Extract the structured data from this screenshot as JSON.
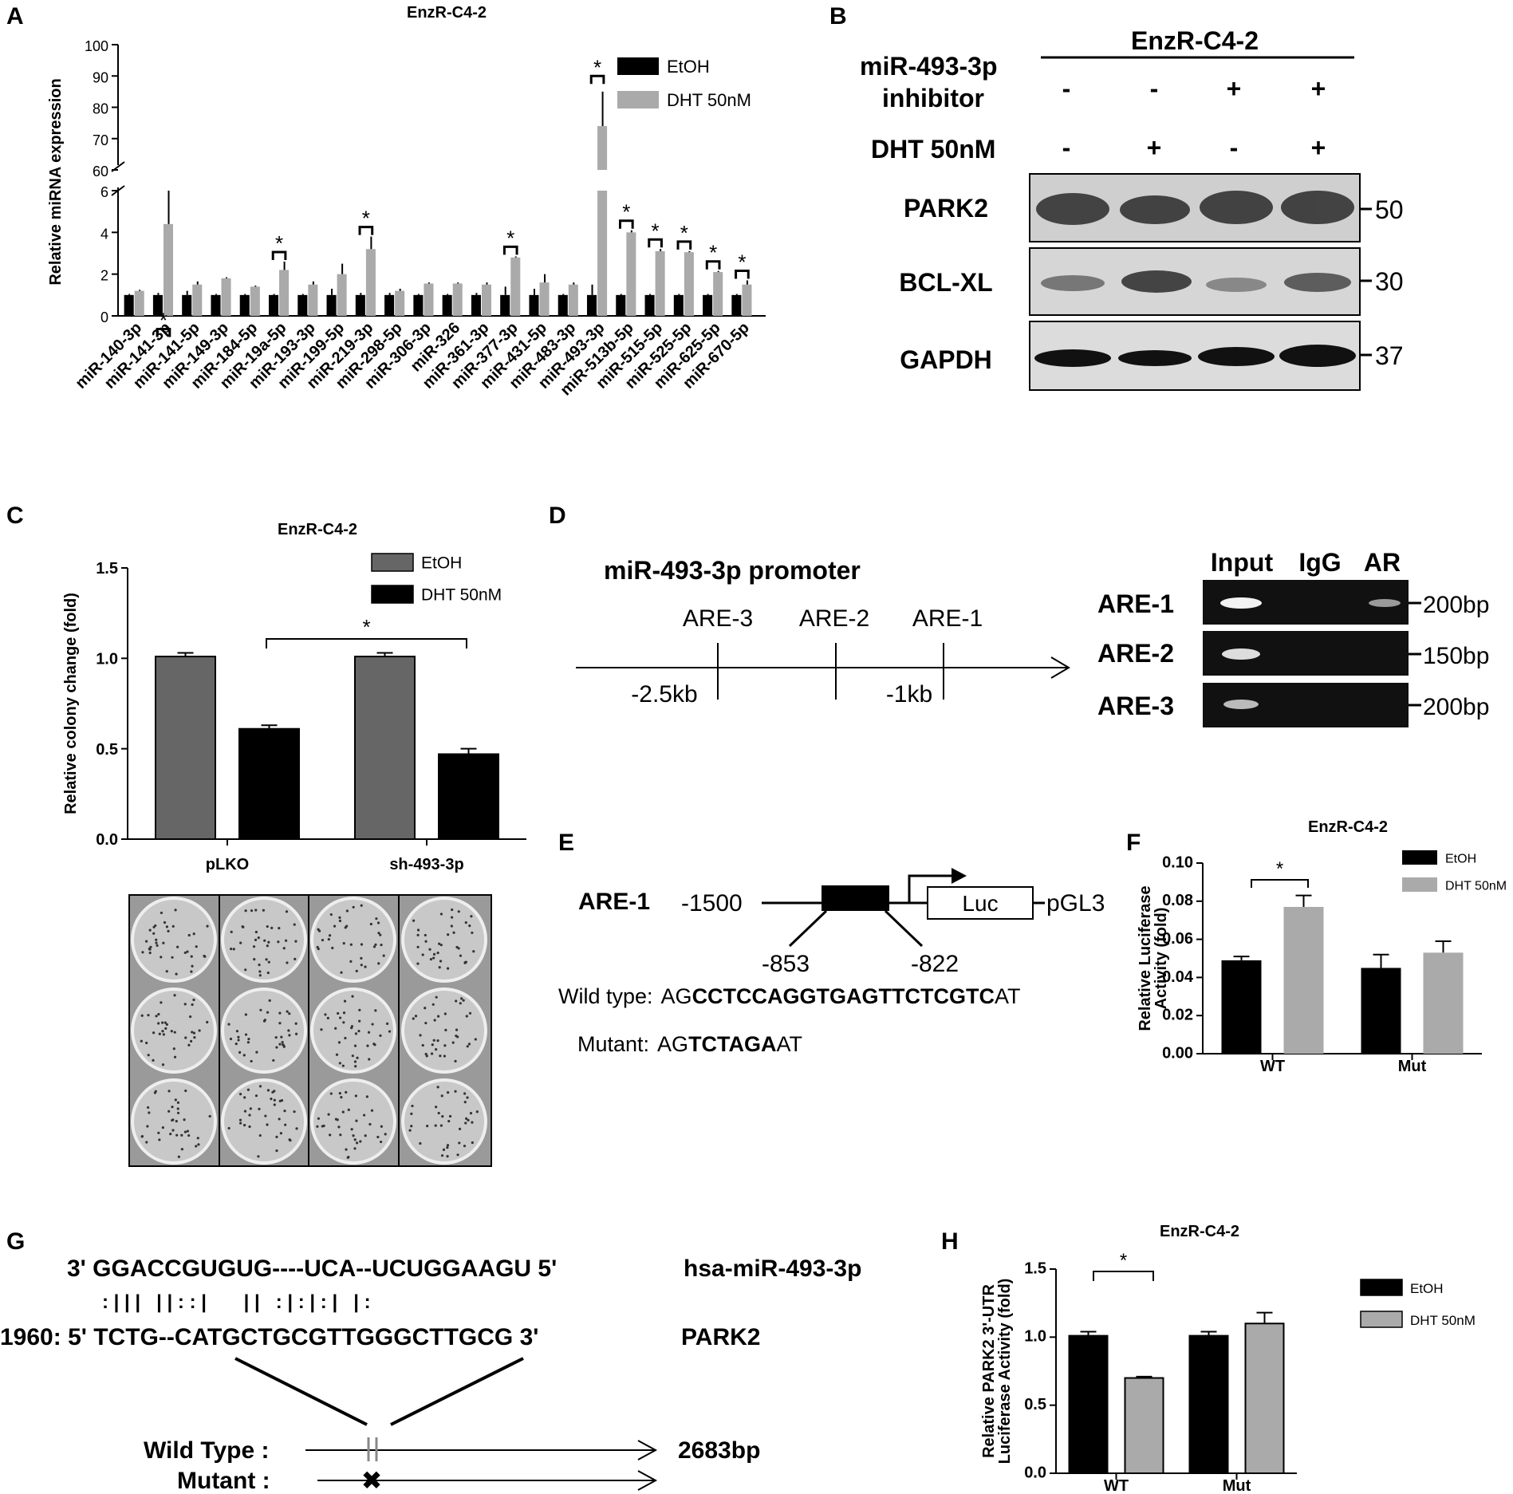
{
  "panels": {
    "A": "A",
    "B": "B",
    "C": "C",
    "D": "D",
    "E": "E",
    "F": "F",
    "G": "G",
    "H": "H"
  },
  "chart_data": [
    {
      "panel": "A",
      "type": "bar",
      "title": "EnzR-C4-2",
      "ylabel": "Relative miRNA expression",
      "xlabel": "",
      "y_axis_break": true,
      "lower_ylim": [
        0,
        6
      ],
      "upper_ylim": [
        60,
        100
      ],
      "lower_ticks": [
        "0",
        "2",
        "4",
        "6"
      ],
      "upper_ticks": [
        "60",
        "70",
        "80",
        "90",
        "100"
      ],
      "legend": [
        "EtOH",
        "DHT 50nM"
      ],
      "legend_position": "top-right",
      "categories": [
        "miR-140-3p",
        "miR-141-3p",
        "miR-141-5p",
        "miR-149-3p",
        "miR-184-5p",
        "miR-19a-5p",
        "miR-193-3p",
        "miR-199-5p",
        "miR-219-3p",
        "miR-298-5p",
        "miR-306-3p",
        "miR-326",
        "miR-361-3p",
        "miR-377-3p",
        "miR-431-5p",
        "miR-483-3p",
        "miR-493-3p",
        "miR-513b-5p",
        "miR-515-5p",
        "miR-525-5p",
        "miR-625-5p",
        "miR-670-5p"
      ],
      "series": [
        {
          "name": "EtOH",
          "color": "#000000",
          "values": [
            1,
            1,
            1,
            1,
            1,
            1,
            1,
            1,
            1,
            1,
            1,
            1,
            1,
            1,
            1,
            1,
            1,
            1,
            1,
            1,
            1,
            1
          ],
          "errors": [
            0.05,
            0.1,
            0.2,
            0.05,
            0.05,
            0.05,
            0.05,
            0.3,
            0.1,
            0.1,
            0.05,
            0.05,
            0.1,
            0.4,
            0.3,
            0.05,
            0.5,
            0.05,
            0.05,
            0.05,
            0.05,
            0.05
          ]
        },
        {
          "name": "DHT 50nM",
          "color": "#aaaaaa",
          "values": [
            1.2,
            4.4,
            1.5,
            1.8,
            1.4,
            2.2,
            1.5,
            2.0,
            3.2,
            1.2,
            1.55,
            1.55,
            1.5,
            2.8,
            1.6,
            1.5,
            74,
            4.0,
            3.1,
            3.05,
            2.1,
            1.5
          ],
          "errors": [
            0.05,
            1.7,
            0.15,
            0.05,
            0.05,
            0.4,
            0.15,
            0.5,
            0.6,
            0.1,
            0.05,
            0.05,
            0.1,
            0.05,
            0.4,
            0.1,
            11,
            0.1,
            0.1,
            0.05,
            0.05,
            0.2
          ]
        }
      ],
      "significance": [
        1,
        5,
        8,
        13,
        16,
        17,
        18,
        19,
        20,
        21
      ],
      "sig_mark": "*"
    },
    {
      "panel": "C",
      "type": "bar",
      "title": "EnzR-C4-2",
      "ylabel": "Relative colony change (fold)",
      "xlabel": "",
      "ylim": [
        0,
        1.5
      ],
      "yticks": [
        "0.0",
        "0.5",
        "1.0",
        "1.5"
      ],
      "legend": [
        "EtOH",
        "DHT 50nM"
      ],
      "legend_position": "top-right",
      "categories": [
        "pLKO",
        "sh-493-3p"
      ],
      "series": [
        {
          "name": "EtOH",
          "color": "#666666",
          "values": [
            1.01,
            1.01
          ],
          "errors": [
            0.02,
            0.02
          ]
        },
        {
          "name": "DHT 50nM",
          "color": "#000000",
          "values": [
            0.61,
            0.47
          ],
          "errors": [
            0.02,
            0.03
          ]
        }
      ],
      "sig_mark": "*"
    },
    {
      "panel": "F",
      "type": "bar",
      "title": "EnzR-C4-2",
      "ylabel": "Relative Luciferase Activity (fold)",
      "ylabel_lines": [
        "Relative Luciferase",
        "Activity (fold)"
      ],
      "xlabel": "",
      "ylim": [
        0,
        0.1
      ],
      "yticks": [
        "0.00",
        "0.02",
        "0.04",
        "0.06",
        "0.08",
        "0.10"
      ],
      "legend": [
        "EtOH",
        "DHT 50nM"
      ],
      "legend_position": "top-right",
      "categories": [
        "WT",
        "Mut"
      ],
      "series": [
        {
          "name": "EtOH",
          "color": "#000000",
          "values": [
            0.049,
            0.045
          ],
          "errors": [
            0.002,
            0.007
          ]
        },
        {
          "name": "DHT 50nM",
          "color": "#aaaaaa",
          "values": [
            0.077,
            0.053
          ],
          "errors": [
            0.006,
            0.006
          ]
        }
      ],
      "sig_mark": "*"
    },
    {
      "panel": "H",
      "type": "bar",
      "title": "EnzR-C4-2",
      "ylabel": "Relative PARK2 3'-UTR Luciferase Activity (fold)",
      "ylabel_lines": [
        "Relative PARK2 3'-UTR",
        "Luciferase Activity (fold)"
      ],
      "xlabel": "",
      "ylim": [
        0,
        1.5
      ],
      "yticks": [
        "0.0",
        "0.5",
        "1.0",
        "1.5"
      ],
      "legend": [
        "EtOH",
        "DHT 50nM"
      ],
      "legend_position": "top-right",
      "categories": [
        "WT",
        "Mut"
      ],
      "series": [
        {
          "name": "EtOH",
          "color": "#000000",
          "values": [
            1.01,
            1.01
          ],
          "errors": [
            0.03,
            0.03
          ]
        },
        {
          "name": "DHT 50nM",
          "color": "#aaaaaa",
          "values": [
            0.7,
            1.1
          ],
          "errors": [
            0.01,
            0.08
          ]
        }
      ],
      "sig_mark": "*"
    }
  ],
  "panelB": {
    "title": "EnzR-C4-2",
    "row1_label_a": "miR-493-3p",
    "row1_label_b": "inhibitor",
    "row1_marks": [
      "-",
      "-",
      "+",
      "+"
    ],
    "row2_label": "DHT 50nM",
    "row2_marks": [
      "-",
      "+",
      "-",
      "+"
    ],
    "blots": [
      {
        "name": "PARK2",
        "size": "50"
      },
      {
        "name": "BCL-XL",
        "size": "30"
      },
      {
        "name": "GAPDH",
        "size": "37"
      }
    ]
  },
  "panelD": {
    "title": "miR-493-3p promoter",
    "sites": [
      "ARE-3",
      "ARE-2",
      "ARE-1"
    ],
    "pos1": "-2.5kb",
    "pos2": "-1kb",
    "gel_cols": [
      "Input",
      "IgG",
      "AR"
    ],
    "gel_rows": [
      {
        "name": "ARE-1",
        "size": "200bp"
      },
      {
        "name": "ARE-2",
        "size": "150bp"
      },
      {
        "name": "ARE-3",
        "size": "200bp"
      }
    ]
  },
  "panelE": {
    "label": "ARE-1",
    "start": "-1500",
    "luc": "Luc",
    "vector": "pGL3",
    "pos_a": "-853",
    "pos_b": "-822",
    "wt_label": "Wild type:",
    "wt_pre": "AG",
    "wt_bold": "CCTCCAGGTGAGTTCTCGTC",
    "wt_post": "AT",
    "mut_label": "Mutant:",
    "mut_pre": "AG",
    "mut_bold": "TCTAGA",
    "mut_post": "AT"
  },
  "panelG": {
    "line1": "3' GGACCGUGUG----UCA--UCUGGAAGU 5'",
    "line1_name": "hsa-miR-493-3p",
    "pairs": ": | | |   | | : : |       | |   : | : | : |   | :",
    "line2": "1960: 5' TCTG--CATGCTGCGTTGGGCTTGCG 3'",
    "line2_name": "PARK2",
    "wt_label": "Wild Type :",
    "wt_len": "2683bp",
    "mut_label": "Mutant :",
    "mut_mark": "✖"
  }
}
